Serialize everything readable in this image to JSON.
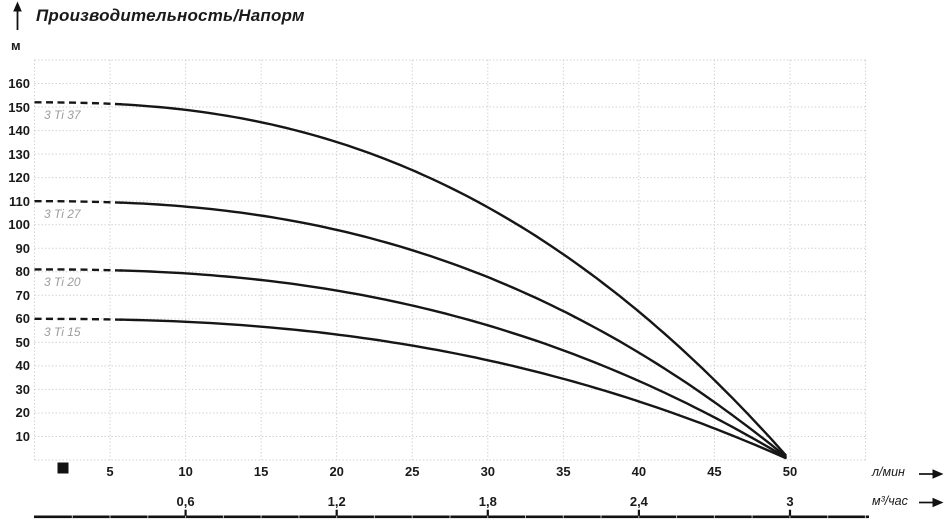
{
  "chart": {
    "title": "Производительность/Напорм",
    "y_axis_unit": "м",
    "x_axis_unit_primary": "л/мин",
    "x_axis_unit_secondary": "м³/час"
  },
  "chart_data": {
    "type": "line",
    "title": "Производительность/Напорм",
    "ylabel": "м",
    "xlabel_primary": "л/мин",
    "xlabel_secondary": "м³/час",
    "x_range_lmin": [
      0,
      55
    ],
    "y_range_m": [
      0,
      170
    ],
    "grid": true,
    "grid_style": "dotted",
    "y_ticks_m": [
      160,
      150,
      140,
      130,
      120,
      110,
      100,
      90,
      80,
      70,
      60,
      50,
      40,
      30,
      20,
      10
    ],
    "x_ticks_lmin": [
      5,
      10,
      15,
      20,
      25,
      30,
      35,
      40,
      45,
      50
    ],
    "x_ticks_m3h": {
      "positions_lmin": [
        10,
        20,
        30,
        40,
        50
      ],
      "labels": [
        "0,6",
        "1,2",
        "1,8",
        "2,4",
        "3"
      ]
    },
    "series_model": {
      "formula": "H = head_max_m * (1 - (Q/flow_max_lmin)^curve_exponent)",
      "curve_exponent": 2.4,
      "flow_max_lmin": 50,
      "dashed_until_q_lmin": 6
    },
    "points_q_lmin": [
      0,
      10,
      20,
      30,
      40,
      50
    ],
    "series": [
      {
        "name": "3 Ti 37",
        "head_max_m": 152,
        "head_m": [
          152,
          149,
          135,
          107,
          63,
          0
        ]
      },
      {
        "name": "3 Ti 27",
        "head_max_m": 110,
        "head_m": [
          110,
          108,
          98,
          78,
          46,
          0
        ]
      },
      {
        "name": "3 Ti 20",
        "head_max_m": 81,
        "head_m": [
          81,
          79,
          72,
          57,
          34,
          0
        ]
      },
      {
        "name": "3 Ti 15",
        "head_max_m": 60,
        "head_m": [
          60,
          59,
          53,
          42,
          25,
          0
        ]
      }
    ],
    "colors": {
      "curve": "#161616",
      "grid": "#cccccc",
      "series_label": "#9c9c9c",
      "text": "#1a1a1a"
    },
    "origin_marker": "black-square"
  }
}
